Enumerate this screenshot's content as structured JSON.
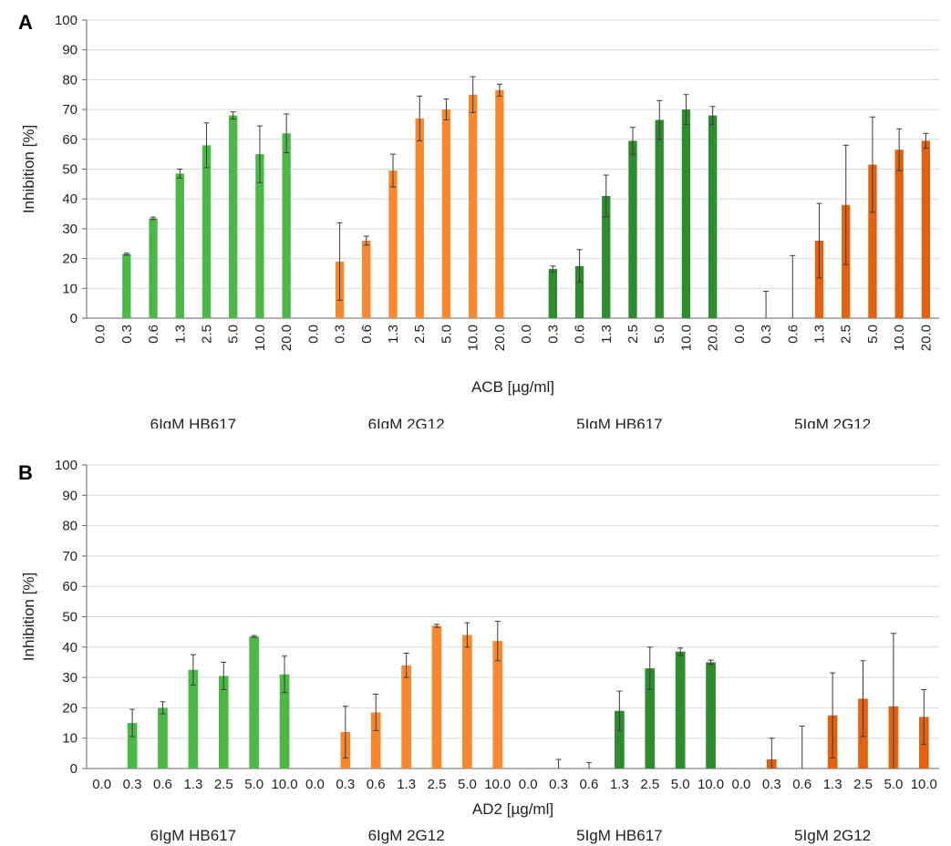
{
  "colors": {
    "light_green": "#4cb847",
    "light_orange": "#f7882f",
    "dark_green": "#2e8b2e",
    "dark_orange": "#e2620f",
    "grid": "#d9d9d9",
    "error_bar": "#3a3a3a"
  },
  "chart_data": [
    {
      "type": "bar",
      "panel_label": "A",
      "title": "",
      "xlabel": "ACB [µg/ml]",
      "ylabel": "Inhibition [%]",
      "ylim": [
        0,
        100
      ],
      "yticks": [
        0,
        10,
        20,
        30,
        40,
        50,
        60,
        70,
        80,
        90,
        100
      ],
      "grid": true,
      "tick_rotation": "vertical",
      "group_labels": [
        "6IgM  HB617",
        "6IgM  2G12",
        "5IgM  HB617",
        "5IgM  2G12"
      ],
      "categories": [
        "0.0",
        "0.3",
        "0.6",
        "1.3",
        "2.5",
        "5.0",
        "10.0",
        "20.0"
      ],
      "series": [
        {
          "name": "6IgM  HB617",
          "color_key": "light_green",
          "values": [
            0,
            21.5,
            33.5,
            48.5,
            58,
            68,
            55,
            62
          ],
          "errors": [
            0,
            0.3,
            0.4,
            1.5,
            7.5,
            1.2,
            9.5,
            6.5
          ]
        },
        {
          "name": "6IgM  2G12",
          "color_key": "light_orange",
          "values": [
            0,
            19,
            26,
            49.5,
            67,
            70,
            75,
            76.5
          ],
          "errors": [
            0,
            13,
            1.5,
            5.5,
            7.5,
            3.5,
            6,
            2
          ]
        },
        {
          "name": "5IgM  HB617",
          "color_key": "dark_green",
          "values": [
            0,
            16.5,
            17.5,
            41,
            59.5,
            66.5,
            70,
            68
          ],
          "errors": [
            0,
            1,
            5.5,
            7,
            4.5,
            6.5,
            5,
            3
          ]
        },
        {
          "name": "5IgM  2G12",
          "color_key": "dark_orange",
          "values": [
            0,
            0,
            0,
            26,
            38,
            51.5,
            56.5,
            59.5
          ],
          "errors": [
            0,
            9,
            21,
            12.5,
            20,
            16,
            7,
            2.5
          ]
        }
      ]
    },
    {
      "type": "bar",
      "panel_label": "B",
      "title": "",
      "xlabel": "AD2 [µg/ml]",
      "ylabel": "Inhibition [%]",
      "ylim": [
        0,
        100
      ],
      "yticks": [
        0,
        10,
        20,
        30,
        40,
        50,
        60,
        70,
        80,
        90,
        100
      ],
      "grid": true,
      "tick_rotation": "horizontal",
      "group_labels": [
        "6IgM  HB617",
        "6IgM  2G12",
        "5IgM  HB617",
        "5IgM  2G12"
      ],
      "categories": [
        "0.0",
        "0.3",
        "0.6",
        "1.3",
        "2.5",
        "5.0",
        "10.0"
      ],
      "series": [
        {
          "name": "6IgM  HB617",
          "color_key": "light_green",
          "values": [
            0,
            15,
            20,
            32.5,
            30.5,
            43.5,
            31
          ],
          "errors": [
            0,
            4.5,
            2,
            5,
            4.5,
            0.3,
            6
          ]
        },
        {
          "name": "6IgM  2G12",
          "color_key": "light_orange",
          "values": [
            0,
            12,
            18.5,
            34,
            47,
            44,
            42
          ],
          "errors": [
            0,
            8.5,
            6,
            4,
            0.5,
            4,
            6.5
          ]
        },
        {
          "name": "5IgM  HB617",
          "color_key": "dark_green",
          "values": [
            0,
            0,
            0,
            19,
            33,
            38.5,
            35
          ],
          "errors": [
            0,
            3,
            2,
            6.5,
            7,
            1.2,
            0.7
          ]
        },
        {
          "name": "5IgM  2G12",
          "color_key": "dark_orange",
          "values": [
            0,
            3,
            0,
            17.5,
            23,
            20.5,
            17
          ],
          "errors": [
            0,
            7,
            14,
            14,
            12.5,
            24,
            9
          ]
        }
      ]
    }
  ]
}
